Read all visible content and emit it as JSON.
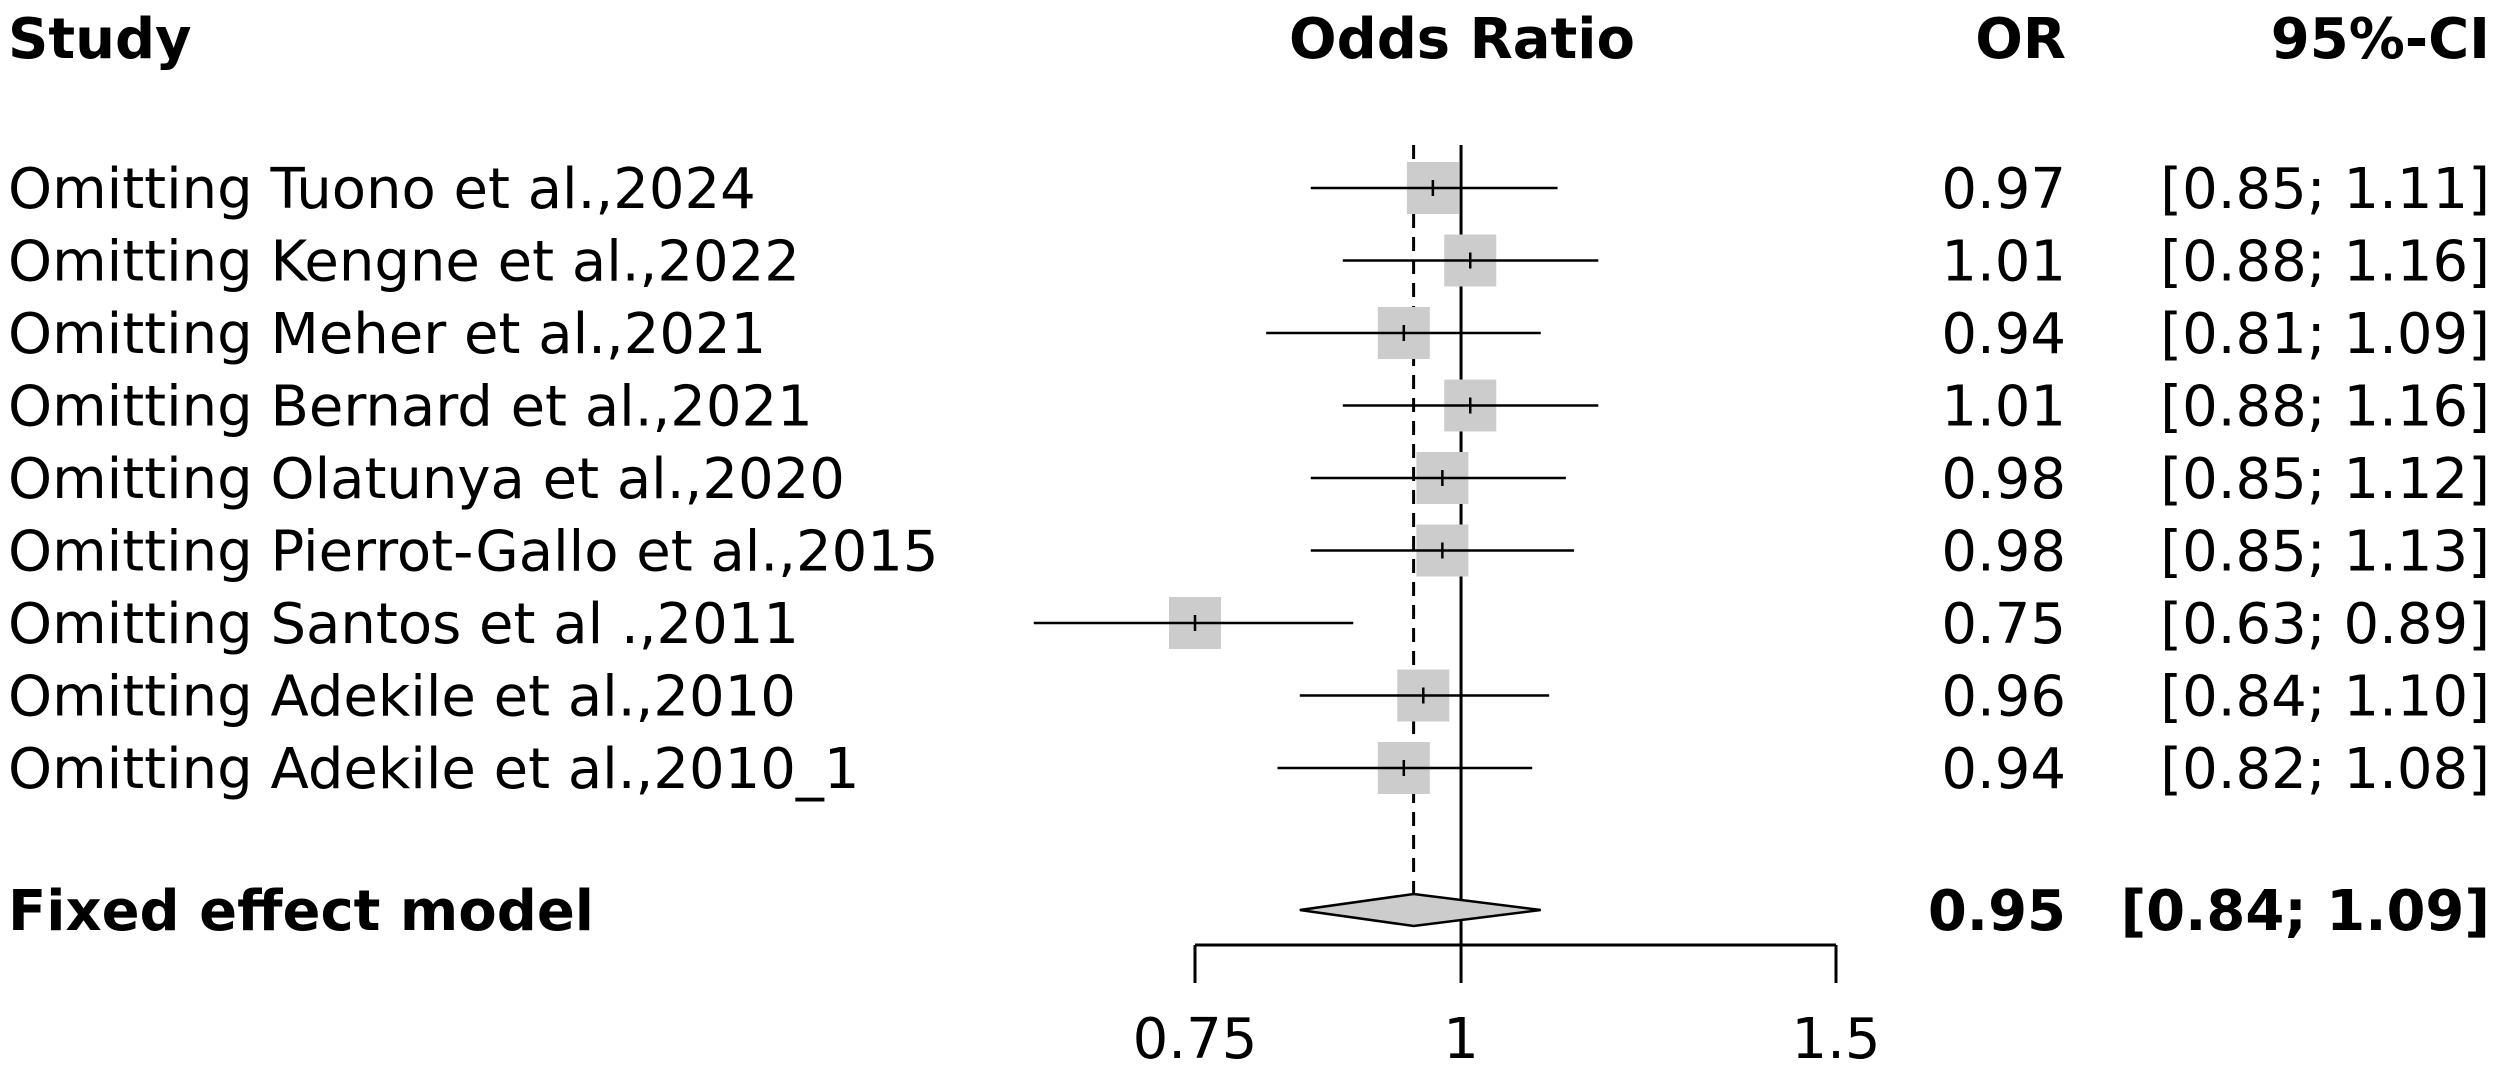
{
  "headers": {
    "study": "Study",
    "effect": "Odds Ratio",
    "or": "OR",
    "ci": "95%-CI"
  },
  "chart_data": {
    "type": "forest",
    "measure": "Odds Ratio",
    "scale": "log",
    "xlim": [
      0.75,
      1.5
    ],
    "ticks": [
      {
        "value": 0.75,
        "label": "0.75"
      },
      {
        "value": 1,
        "label": "1"
      },
      {
        "value": 1.5,
        "label": "1.5"
      }
    ],
    "null_value": 1,
    "studies": [
      {
        "label": "Omitting Tuono et al.,2024",
        "or": 0.97,
        "lower": 0.85,
        "upper": 1.11,
        "or_text": "0.97",
        "ci_text": "[0.85; 1.11]"
      },
      {
        "label": "Omitting Kengne et al.,2022",
        "or": 1.01,
        "lower": 0.88,
        "upper": 1.16,
        "or_text": "1.01",
        "ci_text": "[0.88; 1.16]"
      },
      {
        "label": "Omitting Meher et al.,2021",
        "or": 0.94,
        "lower": 0.81,
        "upper": 1.09,
        "or_text": "0.94",
        "ci_text": "[0.81; 1.09]"
      },
      {
        "label": "Omitting Bernard et al.,2021",
        "or": 1.01,
        "lower": 0.88,
        "upper": 1.16,
        "or_text": "1.01",
        "ci_text": "[0.88; 1.16]"
      },
      {
        "label": "Omitting Olatunya et al.,2020",
        "or": 0.98,
        "lower": 0.85,
        "upper": 1.12,
        "or_text": "0.98",
        "ci_text": "[0.85; 1.12]"
      },
      {
        "label": "Omitting Pierrot-Gallo et al.,2015",
        "or": 0.98,
        "lower": 0.85,
        "upper": 1.13,
        "or_text": "0.98",
        "ci_text": "[0.85; 1.13]"
      },
      {
        "label": "Omitting Santos et al .,2011",
        "or": 0.75,
        "lower": 0.63,
        "upper": 0.89,
        "or_text": "0.75",
        "ci_text": "[0.63; 0.89]"
      },
      {
        "label": "Omitting Adekile et al.,2010",
        "or": 0.96,
        "lower": 0.84,
        "upper": 1.1,
        "or_text": "0.96",
        "ci_text": "[0.84; 1.10]"
      },
      {
        "label": "Omitting Adekile et al.,2010_1",
        "or": 0.94,
        "lower": 0.82,
        "upper": 1.08,
        "or_text": "0.94",
        "ci_text": "[0.82; 1.08]"
      }
    ],
    "pooled": {
      "label": "Fixed effect model",
      "or": 0.95,
      "lower": 0.84,
      "upper": 1.09,
      "or_text": "0.95",
      "ci_text": "[0.84; 1.09]"
    },
    "colors": {
      "square": "#cccccc",
      "diamond": "#cccccc",
      "line": "#000000"
    }
  }
}
